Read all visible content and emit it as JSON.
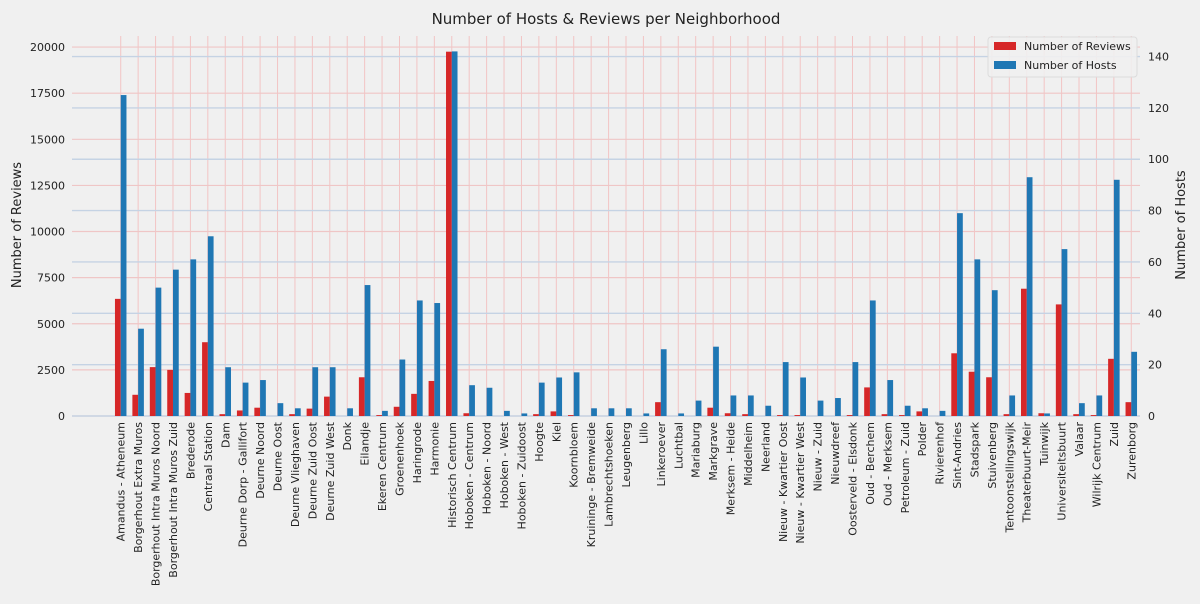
{
  "chart_data": {
    "type": "bar",
    "title": "Number of Hosts & Reviews per Neighborhood",
    "xlabel": "",
    "ylabel": "Number of Reviews",
    "ylabel_right": "Number of Hosts",
    "ylim": [
      0,
      20600
    ],
    "ylim_right": [
      0,
      148
    ],
    "yticks": [
      0,
      2500,
      5000,
      7500,
      10000,
      12500,
      15000,
      17500,
      20000
    ],
    "yticks_right": [
      0,
      20,
      40,
      60,
      80,
      100,
      120,
      140
    ],
    "grid": true,
    "legend_position": "top-right",
    "categories": [
      "Amandus - Atheneum",
      "Borgerhout Extra Muros",
      "Borgerhout Intra Muros Noord",
      "Borgerhout Intra Muros Zuid",
      "Brederode",
      "Centraal Station",
      "Dam",
      "Deurne Dorp - Gallifort",
      "Deurne Noord",
      "Deurne Oost",
      "Deurne Vlieghaven",
      "Deurne Zuid Oost",
      "Deurne Zuid West",
      "Donk",
      "Eilandje",
      "Ekeren Centrum",
      "Groenenhoek",
      "Haringrode",
      "Harmonie",
      "Historisch Centrum",
      "Hoboken - Centrum",
      "Hoboken - Noord",
      "Hoboken - West",
      "Hoboken - Zuidoost",
      "Hoogte",
      "Kiel",
      "Koornbloem",
      "Kruininge - Bremweide",
      "Lambrechtshoeken",
      "Leugenberg",
      "Lillo",
      "Linkeroever",
      "Luchtbal",
      "Mariaburg",
      "Markgrave",
      "Merksem - Heide",
      "Middelheim",
      "Neerland",
      "Nieuw - Kwartier Oost",
      "Nieuw - Kwartier West",
      "Nieuw - Zuid",
      "Nieuwdreef",
      "Oosterveld - Elsdonk",
      "Oud - Berchem",
      "Oud - Merksem",
      "Petroleum - Zuid",
      "Polder",
      "Rivierenhof",
      "Sint-Andries",
      "Stadspark",
      "Stuivenberg",
      "Tentoonstellingswijk",
      "Theaterbuurt-Meir",
      "Tuinwijk",
      "Universiteitsbuurt",
      "Valaar",
      "Wilrijk Centrum",
      "Zuid",
      "Zurenborg"
    ],
    "series": [
      {
        "name": "Number of Reviews",
        "axis": "left",
        "color": "#d62728",
        "values": [
          6350,
          1150,
          2650,
          2500,
          1250,
          4000,
          100,
          300,
          450,
          0,
          100,
          400,
          1050,
          0,
          2100,
          50,
          500,
          1200,
          1900,
          19750,
          150,
          0,
          0,
          0,
          100,
          250,
          50,
          0,
          0,
          0,
          0,
          750,
          0,
          0,
          450,
          150,
          100,
          0,
          50,
          50,
          0,
          0,
          50,
          1550,
          100,
          50,
          250,
          0,
          3400,
          2400,
          2100,
          100,
          6900,
          150,
          6050,
          100,
          50,
          3100,
          750
        ]
      },
      {
        "name": "Number of Hosts",
        "axis": "right",
        "color": "#1f77b4",
        "values": [
          125,
          34,
          50,
          57,
          61,
          70,
          19,
          13,
          14,
          5,
          3,
          19,
          19,
          3,
          51,
          2,
          22,
          45,
          44,
          142,
          12,
          11,
          2,
          1,
          13,
          15,
          17,
          3,
          3,
          3,
          1,
          26,
          1,
          6,
          27,
          8,
          8,
          4,
          21,
          15,
          6,
          7,
          21,
          45,
          14,
          4,
          3,
          2,
          79,
          61,
          49,
          8,
          93,
          1,
          65,
          5,
          8,
          92,
          25
        ]
      }
    ]
  }
}
